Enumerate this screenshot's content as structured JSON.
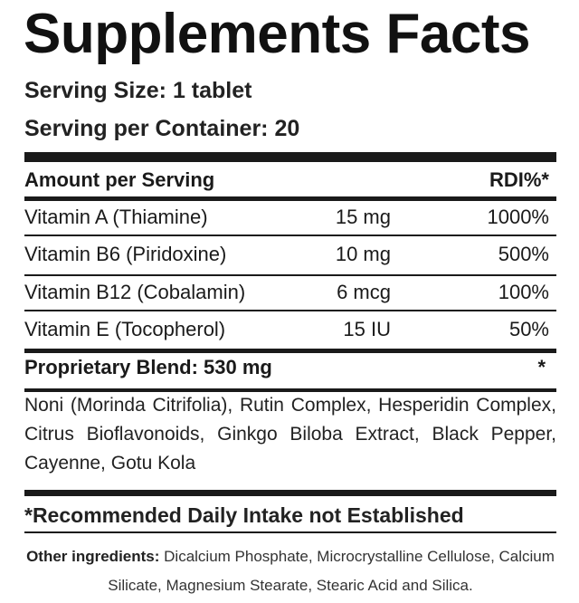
{
  "title": "Supplements Facts",
  "serving_size": "Serving Size: 1 tablet",
  "servings_per_container": "Serving per Container: 20",
  "header": {
    "amount": "Amount per Serving",
    "rdi": "RDI%*"
  },
  "nutrients": [
    {
      "name": "Vitamin A (Thiamine)",
      "amount": "15 mg",
      "rdi": "1000%"
    },
    {
      "name": "Vitamin B6 (Piridoxine)",
      "amount": "10 mg",
      "rdi": "500%"
    },
    {
      "name": "Vitamin B12 (Cobalamin)",
      "amount": "6 mcg",
      "rdi": "100%"
    },
    {
      "name": "Vitamin E (Tocopherol)",
      "amount": "15 IU",
      "rdi": "50%"
    }
  ],
  "blend": {
    "name": "Proprietary Blend: 530 mg",
    "rdi": "*"
  },
  "blend_ingredients": "Noni (Morinda Citrifolia), Rutin Complex, Hesperidin Complex, Citrus Bioflavonoids, Ginkgo Biloba Extract, Black Pepper, Cayenne, Gotu Kola",
  "footnote": "*Recommended Daily Intake not Established",
  "other": {
    "label": "Other ingredients:",
    "text": " Dicalcium Phosphate, Microcrystalline Cellulose, Calcium Silicate, Magnesium Stearate, Stearic Acid and Silica."
  }
}
